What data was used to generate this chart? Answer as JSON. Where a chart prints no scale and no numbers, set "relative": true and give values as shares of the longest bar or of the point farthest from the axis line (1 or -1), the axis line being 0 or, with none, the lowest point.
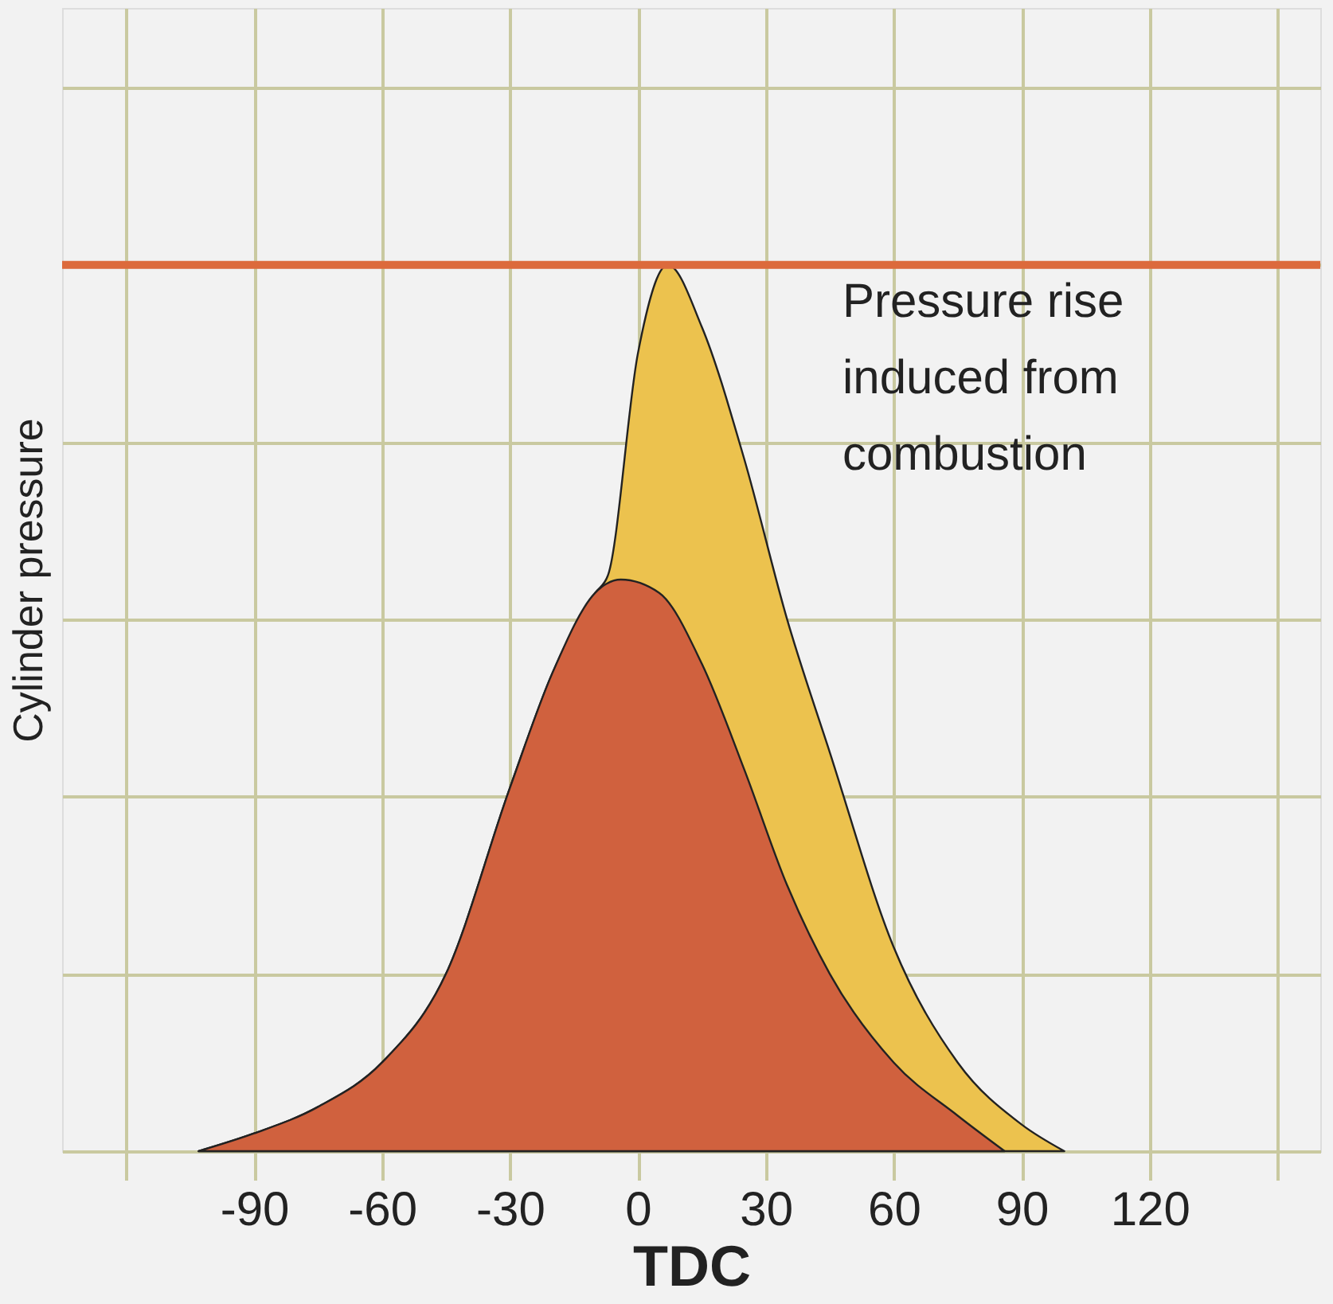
{
  "chart_data": {
    "type": "area",
    "relative": true,
    "xlabel": "TDC",
    "ylabel": "Cylinder pressure",
    "xlim": [
      -135,
      160
    ],
    "xticks": [
      {
        "value": -120,
        "label": null
      },
      -90,
      -60,
      -30,
      0,
      30,
      60,
      90,
      120,
      {
        "value": 150,
        "label": null
      }
    ],
    "grid": true,
    "series": [
      {
        "color": "#ecc24e",
        "x": [
          -103,
          -90,
          -75,
          -60,
          -45,
          -30,
          -20,
          -10,
          -7,
          0,
          7,
          15,
          25,
          35,
          45,
          60,
          75,
          90,
          100
        ],
        "values": [
          0,
          0.02,
          0.05,
          0.1,
          0.2,
          0.41,
          0.54,
          0.63,
          0.65,
          0.9,
          1,
          0.93,
          0.78,
          0.6,
          0.45,
          0.23,
          0.1,
          0.03,
          0
        ]
      },
      {
        "color": "#d0613e",
        "x": [
          -103,
          -90,
          -75,
          -60,
          -45,
          -30,
          -20,
          -10,
          -4,
          5,
          15,
          25,
          35,
          45,
          60,
          75,
          86
        ],
        "values": [
          0,
          0.02,
          0.05,
          0.1,
          0.2,
          0.41,
          0.54,
          0.63,
          0.645,
          0.63,
          0.55,
          0.43,
          0.3,
          0.2,
          0.1,
          0.04,
          0
        ]
      }
    ],
    "ref_lines": [
      {
        "axis": "y",
        "value": 1,
        "color": "#dc6a3c"
      }
    ],
    "annotations": [
      "Pressure rise induced from combustion"
    ]
  }
}
